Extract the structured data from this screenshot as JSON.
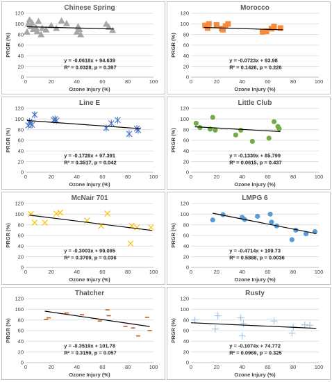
{
  "chart_data": [
    {
      "type": "scatter",
      "title": "Chinese Spring",
      "xlabel": "Ozone Injury (%)",
      "ylabel": "PRGR (%)",
      "xlim": [
        0,
        100
      ],
      "ylim": [
        0,
        120
      ],
      "xticks": [
        0,
        20,
        40,
        60,
        80,
        100
      ],
      "yticks": [
        0,
        20,
        40,
        60,
        80,
        100,
        120
      ],
      "marker": "triangle",
      "color": "#a6a6a6",
      "equation": "y = -0.0618x + 94.639",
      "stats": "R² = 0.0328, p = 0.397",
      "trendline": {
        "slope": -0.0618,
        "intercept": 94.639,
        "x_range": [
          1,
          69
        ]
      },
      "points": [
        [
          1,
          85
        ],
        [
          2,
          100
        ],
        [
          3,
          108
        ],
        [
          4,
          95
        ],
        [
          5,
          102
        ],
        [
          6,
          90
        ],
        [
          8,
          93
        ],
        [
          9,
          86
        ],
        [
          10,
          105
        ],
        [
          12,
          80
        ],
        [
          13,
          92
        ],
        [
          16,
          89
        ],
        [
          20,
          97
        ],
        [
          24,
          92
        ],
        [
          28,
          106
        ],
        [
          32,
          101
        ],
        [
          40,
          85
        ],
        [
          41,
          95
        ],
        [
          42,
          90
        ],
        [
          43,
          80
        ],
        [
          63,
          100
        ],
        [
          65,
          94
        ],
        [
          68,
          88
        ]
      ]
    },
    {
      "type": "scatter",
      "title": "Morocco",
      "xlabel": "Ozone Injury (%)",
      "ylabel": "PRGR (%)",
      "xlim": [
        0,
        100
      ],
      "ylim": [
        0,
        120
      ],
      "xticks": [
        0,
        20,
        40,
        60,
        80,
        100
      ],
      "yticks": [
        0,
        20,
        40,
        60,
        80,
        100,
        120
      ],
      "marker": "square",
      "color": "#f58b3b",
      "equation": "y = -0.0723x + 93.98",
      "stats": "R² = 0.1426, p = 0.226",
      "trendline": {
        "slope": -0.0723,
        "intercept": 93.98,
        "x_range": [
          10,
          72
        ]
      },
      "points": [
        [
          11,
          97
        ],
        [
          13,
          92
        ],
        [
          14,
          100
        ],
        [
          20,
          98
        ],
        [
          24,
          91
        ],
        [
          25,
          89
        ],
        [
          27,
          96
        ],
        [
          29,
          100
        ],
        [
          56,
          85
        ],
        [
          59,
          86
        ],
        [
          63,
          91
        ],
        [
          65,
          95
        ],
        [
          70,
          92
        ]
      ]
    },
    {
      "type": "scatter",
      "title": "Line E",
      "xlabel": "Ozone Injury (%)",
      "ylabel": "PRGR (%)",
      "xlim": [
        0,
        100
      ],
      "ylim": [
        0,
        120
      ],
      "xticks": [
        0,
        20,
        40,
        60,
        80,
        100
      ],
      "yticks": [
        0,
        20,
        40,
        60,
        80,
        100,
        120
      ],
      "marker": "star",
      "color": "#4472c4",
      "equation": "y = -0.1728x + 97.391",
      "stats": "R² = 0.3517, p = 0.042",
      "trendline": {
        "slope": -0.1728,
        "intercept": 97.391,
        "x_range": [
          1,
          90
        ]
      },
      "points": [
        [
          2,
          88
        ],
        [
          3,
          95
        ],
        [
          4,
          92
        ],
        [
          5,
          89
        ],
        [
          7,
          108
        ],
        [
          22,
          98
        ],
        [
          23,
          100
        ],
        [
          24,
          97
        ],
        [
          63,
          83
        ],
        [
          67,
          92
        ],
        [
          72,
          98
        ],
        [
          81,
          72
        ],
        [
          87,
          82
        ],
        [
          88,
          79
        ]
      ]
    },
    {
      "type": "scatter",
      "title": "Little Club",
      "xlabel": "Ozone Injury (%)",
      "ylabel": "PRGR (%)",
      "xlim": [
        0,
        100
      ],
      "ylim": [
        0,
        120
      ],
      "xticks": [
        0,
        20,
        40,
        60,
        80,
        100
      ],
      "yticks": [
        0,
        20,
        40,
        60,
        80,
        100,
        120
      ],
      "marker": "circle",
      "color": "#70ad47",
      "equation": "y = -0.1339x + 85.799",
      "stats": "R² = 0.0615, p = 0.437",
      "trendline": {
        "slope": -0.1339,
        "intercept": 85.799,
        "x_range": [
          3,
          70
        ]
      },
      "points": [
        [
          4,
          92
        ],
        [
          7,
          84
        ],
        [
          15,
          81
        ],
        [
          17,
          103
        ],
        [
          19,
          79
        ],
        [
          35,
          70
        ],
        [
          39,
          79
        ],
        [
          48,
          58
        ],
        [
          61,
          64
        ],
        [
          65,
          95
        ],
        [
          68,
          86
        ],
        [
          69,
          82
        ]
      ]
    },
    {
      "type": "scatter",
      "title": "McNair 701",
      "xlabel": "Ozone Injury (%)",
      "ylabel": "PRGR (%)",
      "xlim": [
        0,
        100
      ],
      "ylim": [
        0,
        120
      ],
      "xticks": [
        0,
        20,
        40,
        60,
        80,
        100
      ],
      "yticks": [
        0,
        20,
        40,
        60,
        80,
        100,
        120
      ],
      "marker": "x",
      "color": "#ffc000",
      "equation": "y = -0.3003x + 99.085",
      "stats": "R² = 0.3709, p = 0.036",
      "trendline": {
        "slope": -0.3003,
        "intercept": 99.085,
        "x_range": [
          3,
          99
        ]
      },
      "points": [
        [
          4,
          100
        ],
        [
          7,
          84
        ],
        [
          15,
          84
        ],
        [
          24,
          101
        ],
        [
          27,
          103
        ],
        [
          48,
          88
        ],
        [
          59,
          78
        ],
        [
          64,
          101
        ],
        [
          82,
          45
        ],
        [
          83,
          78
        ],
        [
          87,
          75
        ],
        [
          98,
          75
        ]
      ]
    },
    {
      "type": "scatter",
      "title": "LMPG 6",
      "xlabel": "Ozone Injury (%)",
      "ylabel": "PRGR (%)",
      "xlim": [
        0,
        100
      ],
      "ylim": [
        0,
        120
      ],
      "xticks": [
        0,
        20,
        40,
        60,
        80,
        100
      ],
      "yticks": [
        0,
        20,
        40,
        60,
        80,
        100,
        120
      ],
      "marker": "circle",
      "color": "#5b9bd5",
      "equation": "y = -0.4714x + 109.73",
      "stats": "R² = 0.5888, p = 0.0036",
      "trendline": {
        "slope": -0.4714,
        "intercept": 109.73,
        "x_range": [
          17,
          98
        ]
      },
      "points": [
        [
          17,
          89
        ],
        [
          25,
          99
        ],
        [
          40,
          94
        ],
        [
          42,
          90
        ],
        [
          52,
          96
        ],
        [
          62,
          100
        ],
        [
          63,
          85
        ],
        [
          67,
          78
        ],
        [
          79,
          52
        ],
        [
          82,
          70
        ],
        [
          90,
          63
        ],
        [
          97,
          67
        ]
      ]
    },
    {
      "type": "scatter",
      "title": "Thatcher",
      "xlabel": "Ozone Injury (%)",
      "ylabel": "PRGR (%)",
      "xlim": [
        0,
        100
      ],
      "ylim": [
        0,
        120
      ],
      "xticks": [
        0,
        20,
        40,
        60,
        80,
        100
      ],
      "yticks": [
        0,
        20,
        40,
        60,
        80,
        100,
        120
      ],
      "marker": "dash",
      "color": "#c55a11",
      "equation": "y = -0.3519x + 101.78",
      "stats": "R² = 0.3159, p = 0.057",
      "trendline": {
        "slope": -0.3519,
        "intercept": 101.78,
        "x_range": [
          15,
          97
        ]
      },
      "points": [
        [
          16,
          81
        ],
        [
          18,
          84
        ],
        [
          32,
          93
        ],
        [
          44,
          90
        ],
        [
          58,
          78
        ],
        [
          64,
          99
        ],
        [
          65,
          88
        ],
        [
          78,
          68
        ],
        [
          84,
          65
        ],
        [
          88,
          50
        ],
        [
          95,
          85
        ],
        [
          97,
          60
        ]
      ]
    },
    {
      "type": "scatter",
      "title": "Rusty",
      "xlabel": "Ozone Injury (%)",
      "ylabel": "PRGR (%)",
      "xlim": [
        0,
        100
      ],
      "ylim": [
        0,
        120
      ],
      "xticks": [
        0,
        20,
        40,
        60,
        80,
        100
      ],
      "yticks": [
        0,
        20,
        40,
        60,
        80,
        100,
        120
      ],
      "marker": "plus",
      "color": "#9dc3e6",
      "equation": "y = -0.1074x + 74.772",
      "stats": "R² = 0.0969, p = 0.325",
      "trendline": {
        "slope": -0.1074,
        "intercept": 74.772,
        "x_range": [
          0,
          98
        ]
      },
      "points": [
        [
          3,
          80
        ],
        [
          19,
          63
        ],
        [
          21,
          88
        ],
        [
          39,
          84
        ],
        [
          40,
          50
        ],
        [
          41,
          73
        ],
        [
          65,
          78
        ],
        [
          79,
          55
        ],
        [
          80,
          67
        ],
        [
          89,
          71
        ],
        [
          93,
          70
        ]
      ]
    }
  ]
}
